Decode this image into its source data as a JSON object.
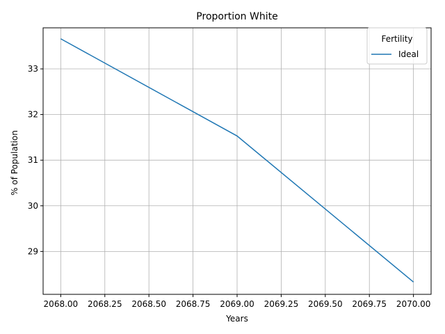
{
  "chart_data": {
    "type": "line",
    "title": "Proportion White",
    "xlabel": "Years",
    "ylabel": "% of Population",
    "xlim": [
      2067.9,
      2070.1
    ],
    "ylim": [
      28.06,
      33.9
    ],
    "x_ticks": [
      2068.0,
      2068.25,
      2068.5,
      2068.75,
      2069.0,
      2069.25,
      2069.5,
      2069.75,
      2070.0
    ],
    "x_tick_labels": [
      "2068.00",
      "2068.25",
      "2068.50",
      "2068.75",
      "2069.00",
      "2069.25",
      "2069.50",
      "2069.75",
      "2070.00"
    ],
    "y_ticks": [
      29,
      30,
      31,
      32,
      33
    ],
    "y_tick_labels": [
      "29",
      "30",
      "31",
      "32",
      "33"
    ],
    "grid": true,
    "legend": {
      "title": "Fertility",
      "position": "top-right"
    },
    "series": [
      {
        "name": "Ideal",
        "color": "#1f77b4",
        "x": [
          2068.0,
          2069.0,
          2070.0
        ],
        "y": [
          33.66,
          31.53,
          28.33
        ]
      }
    ]
  }
}
